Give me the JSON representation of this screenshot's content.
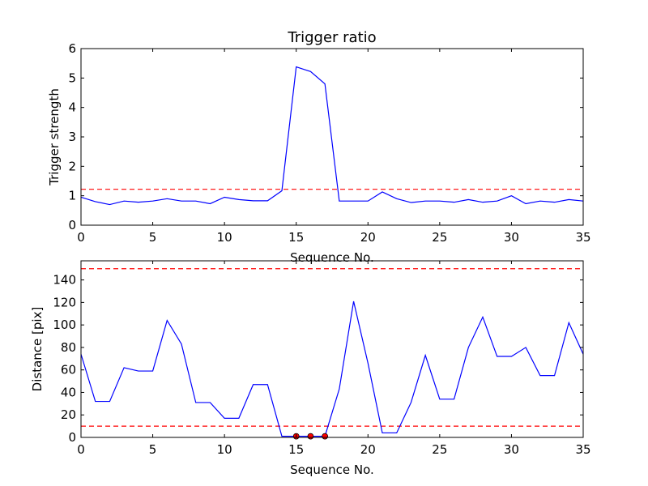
{
  "chart_data": [
    {
      "type": "line",
      "title": "Trigger ratio",
      "xlabel": "Sequence No.",
      "ylabel": "Trigger strength",
      "xlim": [
        0,
        35
      ],
      "ylim": [
        0,
        6
      ],
      "xticks": [
        0,
        5,
        10,
        15,
        20,
        25,
        30,
        35
      ],
      "yticks": [
        0,
        1,
        2,
        3,
        4,
        5,
        6
      ],
      "grid": false,
      "series": [
        {
          "color": "#0000ff",
          "style": "solid",
          "x": [
            0,
            1,
            2,
            3,
            4,
            5,
            6,
            7,
            8,
            9,
            10,
            11,
            12,
            13,
            14,
            15,
            16,
            17,
            18,
            19,
            20,
            21,
            22,
            23,
            24,
            25,
            26,
            27,
            28,
            29,
            30,
            31,
            32,
            33,
            34,
            35
          ],
          "y": [
            0.95,
            0.8,
            0.7,
            0.82,
            0.78,
            0.82,
            0.9,
            0.82,
            0.82,
            0.73,
            0.95,
            0.87,
            0.83,
            0.83,
            1.17,
            5.38,
            5.22,
            4.8,
            0.82,
            0.82,
            0.82,
            1.13,
            0.9,
            0.77,
            0.82,
            0.82,
            0.78,
            0.87,
            0.78,
            0.82,
            1.0,
            0.73,
            0.82,
            0.78,
            0.87,
            0.82
          ]
        }
      ],
      "hlines": [
        {
          "y": 1.22,
          "color": "#ff0000",
          "style": "dashed"
        }
      ]
    },
    {
      "type": "line",
      "title": "",
      "xlabel": "Sequence No.",
      "ylabel": "Distance [pix]",
      "xlim": [
        0,
        35
      ],
      "ylim": [
        0,
        157
      ],
      "xticks": [
        0,
        5,
        10,
        15,
        20,
        25,
        30,
        35
      ],
      "yticks": [
        0,
        20,
        40,
        60,
        80,
        100,
        120,
        140
      ],
      "grid": false,
      "series": [
        {
          "color": "#0000ff",
          "style": "solid",
          "x": [
            0,
            1,
            2,
            3,
            4,
            5,
            6,
            7,
            8,
            9,
            10,
            11,
            12,
            13,
            14,
            15,
            16,
            17,
            18,
            19,
            20,
            21,
            22,
            23,
            24,
            25,
            26,
            27,
            28,
            29,
            30,
            31,
            32,
            33,
            34,
            35
          ],
          "y": [
            74,
            32,
            32,
            62,
            59,
            59,
            104,
            83,
            31,
            31,
            17,
            17,
            47,
            47,
            1,
            1,
            1,
            1,
            43,
            121,
            66,
            4,
            4,
            31,
            73,
            34,
            34,
            80,
            107,
            72,
            72,
            80,
            55,
            55,
            102,
            74
          ]
        }
      ],
      "markers": {
        "color": "#ff0000",
        "x": [
          15,
          16,
          17
        ],
        "y": [
          1,
          1,
          1
        ]
      },
      "hlines": [
        {
          "y": 150,
          "color": "#ff0000",
          "style": "dashed"
        },
        {
          "y": 10,
          "color": "#ff0000",
          "style": "dashed"
        }
      ]
    }
  ]
}
